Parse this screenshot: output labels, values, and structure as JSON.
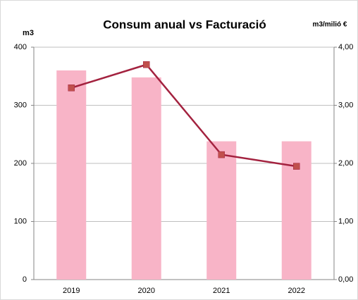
{
  "chart_data": {
    "type": "bar_line",
    "title": "Consum anual vs Facturació",
    "y_label": "m3",
    "y2_label": "m3/milió €",
    "categories": [
      "2019",
      "2020",
      "2021",
      "2022"
    ],
    "series": [
      {
        "type": "bar",
        "color": "#f8b4c7",
        "values": [
          360,
          348,
          238,
          238
        ]
      },
      {
        "type": "line",
        "color": "#a3223f",
        "marker_color": "#c0504d",
        "axis": "y2",
        "values": [
          3.3,
          3.7,
          2.15,
          1.95
        ]
      }
    ],
    "ylim": [
      0,
      400
    ],
    "yticks": [
      0,
      100,
      200,
      300,
      400
    ],
    "y2lim": [
      0,
      4
    ],
    "y2ticks": [
      {
        "value": 0,
        "label": "0,00"
      },
      {
        "value": 1,
        "label": "1,00"
      },
      {
        "value": 2,
        "label": "2,00"
      },
      {
        "value": 3,
        "label": "3,00"
      },
      {
        "value": 4,
        "label": "4,00"
      }
    ],
    "grid": true
  }
}
